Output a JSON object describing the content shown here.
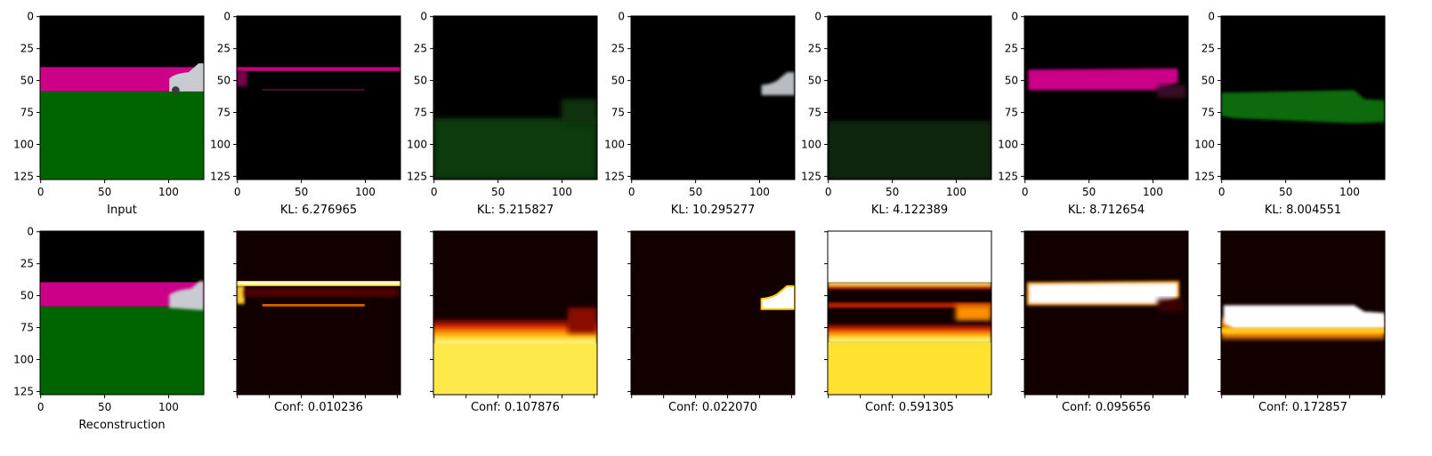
{
  "chart_data": {
    "type": "image_grid",
    "image_range": [
      0,
      127
    ],
    "axis_ticks": [
      0,
      25,
      50,
      75,
      100,
      125
    ],
    "x_ticks_top": [
      0,
      50,
      100
    ],
    "colors": {
      "road_magenta": "#cc0088",
      "ground_green": "#006400",
      "car_silver": "#c8ccd0",
      "heat_dark": "#120000",
      "heat_mid": "#c01800",
      "heat_orange": "#ff8c00",
      "heat_yellow": "#ffe640",
      "heat_white": "#ffffff"
    },
    "top_row": [
      {
        "label": "Input"
      },
      {
        "label": "KL: 6.276965",
        "kl": 6.276965
      },
      {
        "label": "KL: 5.215827",
        "kl": 5.215827
      },
      {
        "label": "KL: 10.295277",
        "kl": 10.295277
      },
      {
        "label": "KL: 4.122389",
        "kl": 4.122389
      },
      {
        "label": "KL: 8.712654",
        "kl": 8.712654
      },
      {
        "label": "KL: 8.004551",
        "kl": 8.004551
      }
    ],
    "bottom_row": [
      {
        "label": "Reconstruction"
      },
      {
        "label": "Conf: 0.010236",
        "conf": 0.010236
      },
      {
        "label": "Conf: 0.107876",
        "conf": 0.107876
      },
      {
        "label": "Conf: 0.022070",
        "conf": 0.02207
      },
      {
        "label": "Conf: 0.591305",
        "conf": 0.591305
      },
      {
        "label": "Conf: 0.095656",
        "conf": 0.095656
      },
      {
        "label": "Conf: 0.172857",
        "conf": 0.172857
      }
    ]
  }
}
